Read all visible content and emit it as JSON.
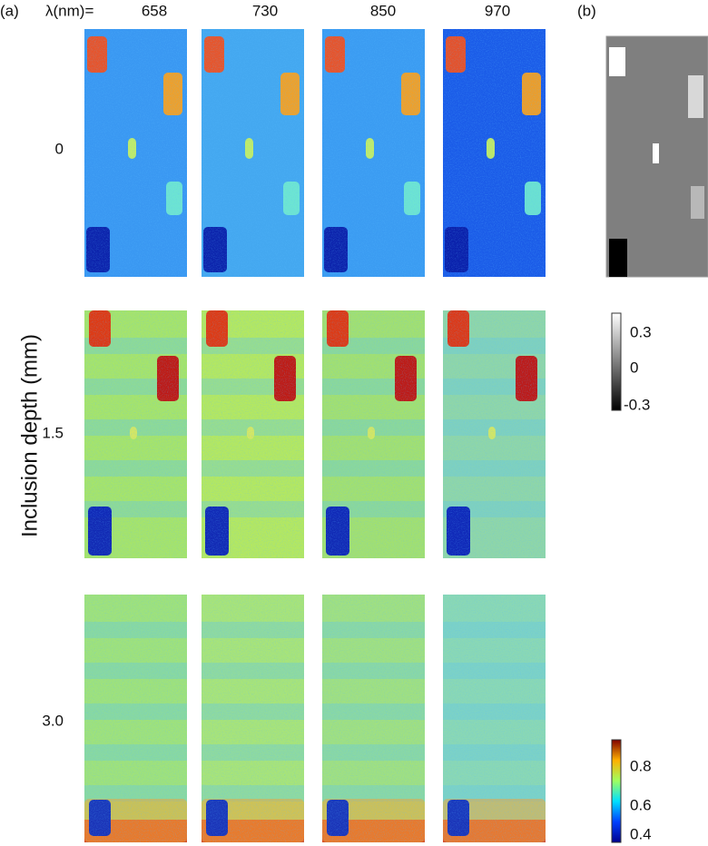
{
  "panel_a": {
    "label": "(a)",
    "wavelength_label": "λ(nm)=",
    "wavelengths": [
      "658",
      "730",
      "850",
      "970"
    ],
    "depth_axis_label": "Inclusion depth (mm)",
    "depths": [
      "0",
      "1.5",
      "3.0"
    ],
    "colorbar_ticks": [
      0.8,
      0.6,
      0.4
    ]
  },
  "panel_b": {
    "label": "(b)",
    "colorbar_ticks": [
      0.3,
      0,
      -0.3
    ]
  }
}
